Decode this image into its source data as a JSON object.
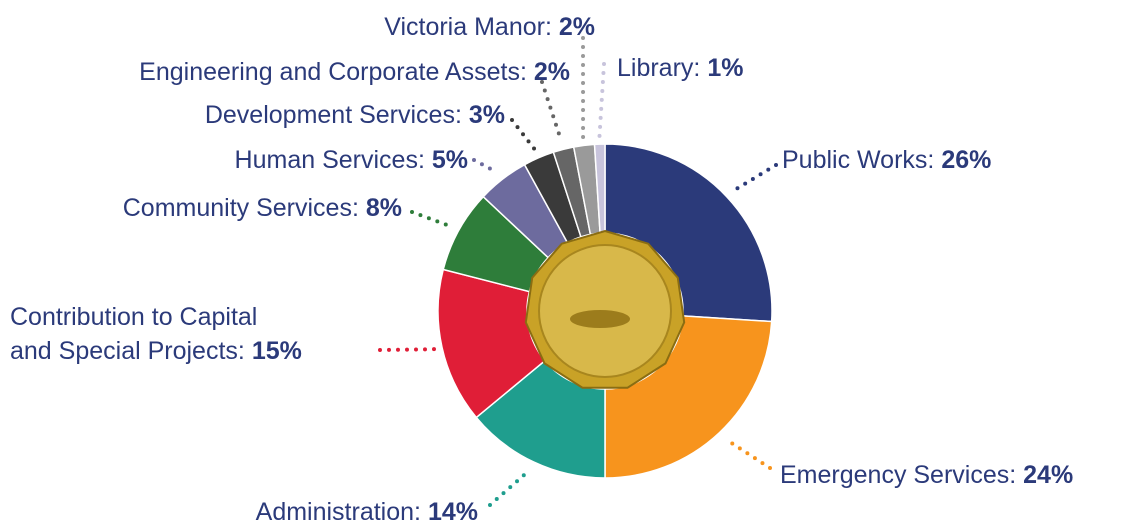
{
  "chart_data": {
    "type": "donut",
    "categories": [
      "Public Works:",
      "Emergency Services:",
      "Administration:",
      "Contribution to Capital\nand Special Projects:",
      "Community Services:",
      "Human Services:",
      "Development Services:",
      "Engineering and Corporate Assets:",
      "Victoria Manor:",
      "Library:"
    ],
    "values": [
      26,
      24,
      14,
      15,
      8,
      5,
      3,
      2,
      2,
      1
    ],
    "value_labels": [
      "26%",
      "24%",
      "14%",
      "15%",
      "8%",
      "5%",
      "3%",
      "2%",
      "2%",
      "1%"
    ],
    "colors": [
      "#2b3a7a",
      "#f7941d",
      "#1f9e8e",
      "#e01e37",
      "#2e7d3a",
      "#6d6b9e",
      "#3a3a3a",
      "#666666",
      "#9a9a9a",
      "#c8c4dc"
    ]
  }
}
